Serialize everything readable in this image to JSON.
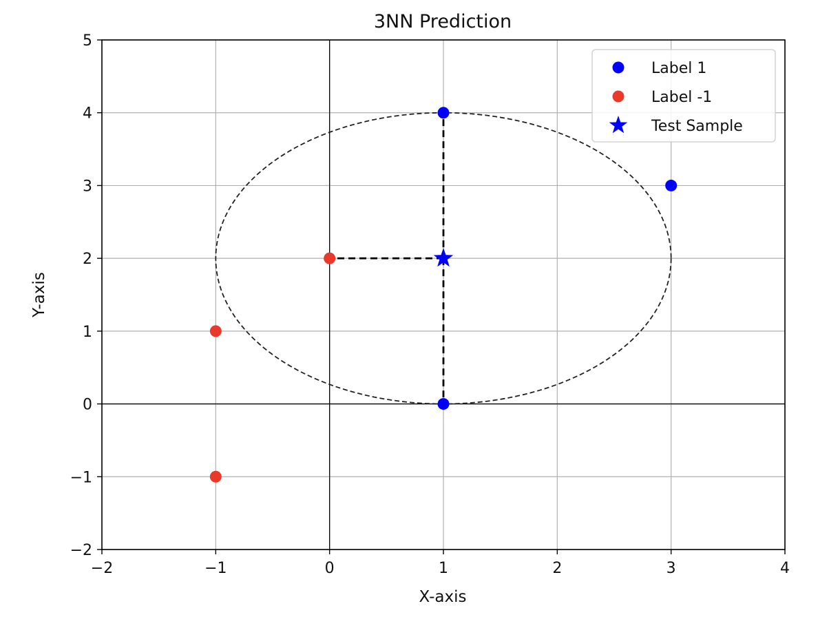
{
  "chart_data": {
    "type": "scatter",
    "title": "3NN Prediction",
    "xlabel": "X-axis",
    "ylabel": "Y-axis",
    "xlim": [
      -2,
      4
    ],
    "ylim": [
      -2,
      5
    ],
    "x_ticks": [
      -2,
      -1,
      0,
      1,
      2,
      3,
      4
    ],
    "y_ticks": [
      -2,
      -1,
      0,
      1,
      2,
      3,
      4,
      5
    ],
    "x_tick_labels": [
      "−2",
      "−1",
      "0",
      "1",
      "2",
      "3",
      "4"
    ],
    "y_tick_labels": [
      "−2",
      "−1",
      "0",
      "1",
      "2",
      "3",
      "4",
      "5"
    ],
    "grid": true,
    "legend_position": "top-right",
    "series": [
      {
        "name": "Label 1",
        "marker": "circle",
        "color": "#0000ff",
        "points": [
          {
            "x": 1,
            "y": 4
          },
          {
            "x": 3,
            "y": 3
          },
          {
            "x": 1,
            "y": 0
          }
        ]
      },
      {
        "name": "Label -1",
        "marker": "circle",
        "color": "#e8392b",
        "points": [
          {
            "x": 0,
            "y": 2
          },
          {
            "x": -1,
            "y": 1
          },
          {
            "x": -1,
            "y": -1
          }
        ]
      },
      {
        "name": "Test Sample",
        "marker": "star",
        "color": "#0000ff",
        "points": [
          {
            "x": 1,
            "y": 2
          }
        ]
      }
    ],
    "neighbor_lines": [
      {
        "from": {
          "x": 1,
          "y": 2
        },
        "to": {
          "x": 1,
          "y": 4
        }
      },
      {
        "from": {
          "x": 1,
          "y": 2
        },
        "to": {
          "x": 0,
          "y": 2
        }
      },
      {
        "from": {
          "x": 1,
          "y": 2
        },
        "to": {
          "x": 1,
          "y": 0
        }
      }
    ],
    "ellipse": {
      "cx": 1,
      "cy": 2,
      "rx": 2,
      "ry": 2
    },
    "axis_lines": {
      "x": 0,
      "y": 0
    }
  }
}
